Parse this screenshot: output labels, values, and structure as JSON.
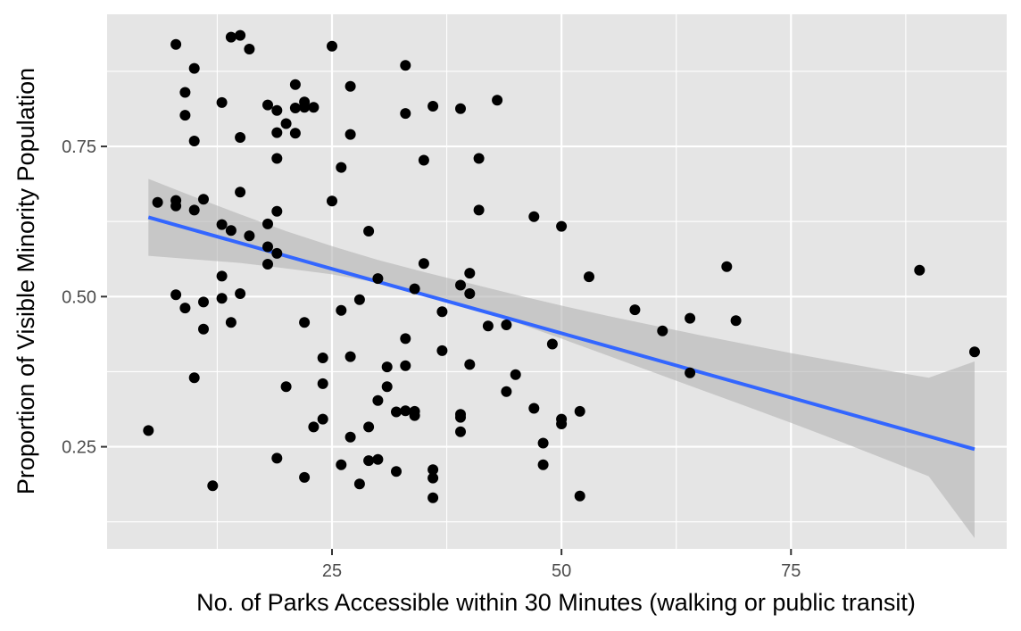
{
  "chart_data": {
    "type": "scatter",
    "title": "",
    "xlabel": "No. of Parks Accessible within 30 Minutes (walking or public transit)",
    "ylabel": "Proportion of Visible Minority Population",
    "xlim": [
      0.5,
      98.5
    ],
    "ylim": [
      0.08,
      0.97
    ],
    "x_ticks": [
      25,
      50,
      75
    ],
    "x_tick_labels": [
      "25",
      "50",
      "75"
    ],
    "x_minor_ticks": [
      12.5,
      37.5,
      62.5,
      87.5
    ],
    "y_ticks": [
      0.25,
      0.5,
      0.75
    ],
    "y_tick_labels": [
      "0.25",
      "0.50",
      "0.75"
    ],
    "y_minor_ticks": [
      0.125,
      0.375,
      0.625,
      0.875
    ],
    "grid": true,
    "legend": "none",
    "colors": {
      "panel_background": "#e5e5e5",
      "grid_line": "#ffffff",
      "point": "#000000",
      "fit_line": "#3366ff",
      "confidence_band": "#b3b3b3"
    },
    "points": [
      [
        5,
        0.277
      ],
      [
        6,
        0.657
      ],
      [
        8,
        0.92
      ],
      [
        8,
        0.66
      ],
      [
        8,
        0.651
      ],
      [
        8,
        0.503
      ],
      [
        9,
        0.84
      ],
      [
        9,
        0.802
      ],
      [
        9,
        0.481
      ],
      [
        10,
        0.88
      ],
      [
        10,
        0.759
      ],
      [
        10,
        0.644
      ],
      [
        10,
        0.365
      ],
      [
        11,
        0.662
      ],
      [
        11,
        0.491
      ],
      [
        11,
        0.446
      ],
      [
        12,
        0.185
      ],
      [
        13,
        0.823
      ],
      [
        13,
        0.62
      ],
      [
        13,
        0.534
      ],
      [
        13,
        0.497
      ],
      [
        14,
        0.932
      ],
      [
        14,
        0.61
      ],
      [
        14,
        0.457
      ],
      [
        15,
        0.935
      ],
      [
        15,
        0.765
      ],
      [
        15,
        0.674
      ],
      [
        15,
        0.505
      ],
      [
        16,
        0.912
      ],
      [
        16,
        0.601
      ],
      [
        18,
        0.819
      ],
      [
        18,
        0.621
      ],
      [
        18,
        0.583
      ],
      [
        18,
        0.554
      ],
      [
        19,
        0.81
      ],
      [
        19,
        0.773
      ],
      [
        19,
        0.73
      ],
      [
        19,
        0.642
      ],
      [
        19,
        0.572
      ],
      [
        19,
        0.231
      ],
      [
        20,
        0.788
      ],
      [
        20,
        0.35
      ],
      [
        21,
        0.853
      ],
      [
        21,
        0.814
      ],
      [
        21,
        0.772
      ],
      [
        22,
        0.824
      ],
      [
        22,
        0.815
      ],
      [
        22,
        0.457
      ],
      [
        22,
        0.199
      ],
      [
        23,
        0.815
      ],
      [
        23,
        0.283
      ],
      [
        24,
        0.398
      ],
      [
        24,
        0.355
      ],
      [
        24,
        0.296
      ],
      [
        25,
        0.917
      ],
      [
        25,
        0.659
      ],
      [
        26,
        0.715
      ],
      [
        26,
        0.477
      ],
      [
        26,
        0.22
      ],
      [
        27,
        0.85
      ],
      [
        27,
        0.77
      ],
      [
        27,
        0.4
      ],
      [
        27,
        0.266
      ],
      [
        28,
        0.495
      ],
      [
        28,
        0.188
      ],
      [
        29,
        0.609
      ],
      [
        29,
        0.283
      ],
      [
        29,
        0.227
      ],
      [
        30,
        0.53
      ],
      [
        30,
        0.327
      ],
      [
        30,
        0.229
      ],
      [
        31,
        0.383
      ],
      [
        31,
        0.35
      ],
      [
        32,
        0.308
      ],
      [
        32,
        0.209
      ],
      [
        33,
        0.885
      ],
      [
        33,
        0.805
      ],
      [
        33,
        0.43
      ],
      [
        33,
        0.385
      ],
      [
        33,
        0.31
      ],
      [
        34,
        0.513
      ],
      [
        34,
        0.309
      ],
      [
        34,
        0.302
      ],
      [
        35,
        0.727
      ],
      [
        35,
        0.555
      ],
      [
        36,
        0.817
      ],
      [
        36,
        0.212
      ],
      [
        36,
        0.198
      ],
      [
        36,
        0.165
      ],
      [
        37,
        0.475
      ],
      [
        37,
        0.41
      ],
      [
        39,
        0.813
      ],
      [
        39,
        0.519
      ],
      [
        39,
        0.304
      ],
      [
        39,
        0.299
      ],
      [
        39,
        0.275
      ],
      [
        40,
        0.539
      ],
      [
        40,
        0.505
      ],
      [
        40,
        0.387
      ],
      [
        41,
        0.73
      ],
      [
        41,
        0.644
      ],
      [
        42,
        0.451
      ],
      [
        43,
        0.827
      ],
      [
        44,
        0.453
      ],
      [
        44,
        0.342
      ],
      [
        45,
        0.37
      ],
      [
        47,
        0.633
      ],
      [
        47,
        0.314
      ],
      [
        48,
        0.256
      ],
      [
        48,
        0.22
      ],
      [
        49,
        0.421
      ],
      [
        50,
        0.617
      ],
      [
        50,
        0.296
      ],
      [
        50,
        0.288
      ],
      [
        52,
        0.309
      ],
      [
        52,
        0.168
      ],
      [
        53,
        0.533
      ],
      [
        58,
        0.478
      ],
      [
        61,
        0.443
      ],
      [
        64,
        0.464
      ],
      [
        64,
        0.373
      ],
      [
        68,
        0.55
      ],
      [
        69,
        0.46
      ],
      [
        89,
        0.544
      ],
      [
        95,
        0.408
      ]
    ],
    "fit_line": {
      "x": [
        5,
        95
      ],
      "y": [
        0.632,
        0.246
      ]
    },
    "confidence_band": {
      "x": [
        5,
        10,
        15,
        20,
        25,
        30,
        35,
        40,
        45,
        50,
        55,
        60,
        65,
        70,
        75,
        80,
        85,
        90,
        95
      ],
      "upper": [
        0.696,
        0.666,
        0.637,
        0.609,
        0.584,
        0.561,
        0.541,
        0.522,
        0.503,
        0.485,
        0.468,
        0.452,
        0.436,
        0.421,
        0.406,
        0.392,
        0.378,
        0.365,
        0.392
      ],
      "lower": [
        0.568,
        0.562,
        0.556,
        0.547,
        0.537,
        0.523,
        0.505,
        0.482,
        0.457,
        0.43,
        0.402,
        0.374,
        0.346,
        0.318,
        0.29,
        0.261,
        0.231,
        0.201,
        0.098
      ]
    }
  }
}
